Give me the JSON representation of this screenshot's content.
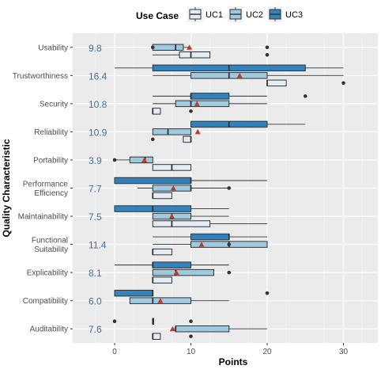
{
  "chart_data": {
    "type": "boxplot",
    "xlabel": "Points",
    "ylabel": "Quality Characteristic",
    "xlim": [
      -5,
      35
    ],
    "xticks": [
      0,
      10,
      20,
      30
    ],
    "grid": true,
    "legend": {
      "title": "Use Case",
      "position": "top",
      "entries": [
        "UC1",
        "UC2",
        "UC3"
      ]
    },
    "series_colors": {
      "UC1": "#e4edf7",
      "UC2": "#9ecae1",
      "UC3": "#3182bd"
    },
    "mean_marker_color": "#c0392b",
    "categories": [
      {
        "name": [
          "Usability"
        ],
        "mean": "9.8",
        "boxes": {
          "UC2": {
            "wmin": 5,
            "q1": 5,
            "median": 8,
            "q3": 9,
            "wmax": 10,
            "outliers": [
              5,
              20
            ]
          },
          "UC1": {
            "wmin": 5,
            "q1": 8.5,
            "median": 10,
            "q3": 12.5,
            "wmax": 12.5,
            "outliers": [
              20
            ]
          }
        },
        "mean_point": 9.8
      },
      {
        "name": [
          "Trustworthiness"
        ],
        "mean": "16.4",
        "boxes": {
          "UC3": {
            "wmin": 0,
            "q1": 5,
            "median": 15,
            "q3": 25,
            "wmax": 30,
            "outliers": []
          },
          "UC2": {
            "wmin": 5,
            "q1": 10,
            "median": 15,
            "q3": 20,
            "wmax": 30,
            "outliers": []
          },
          "UC1": {
            "wmin": 20,
            "q1": 20,
            "median": 20,
            "q3": 22.5,
            "wmax": 22.5,
            "outliers": [
              30
            ]
          }
        },
        "mean_point": 16.4
      },
      {
        "name": [
          "Security"
        ],
        "mean": "10.8",
        "boxes": {
          "UC3": {
            "wmin": 5,
            "q1": 10,
            "median": 10,
            "q3": 15,
            "wmax": 20,
            "outliers": [
              25
            ]
          },
          "UC2": {
            "wmin": 5,
            "q1": 8,
            "median": 10,
            "q3": 15,
            "wmax": 20,
            "outliers": []
          },
          "UC1": {
            "wmin": 5,
            "q1": 5,
            "median": 5,
            "q3": 6,
            "wmax": 6,
            "outliers": [
              10
            ]
          }
        },
        "mean_point": 10.8
      },
      {
        "name": [
          "Reliability"
        ],
        "mean": "10.9",
        "boxes": {
          "UC3": {
            "wmin": 10,
            "q1": 10,
            "median": 15,
            "q3": 20,
            "wmax": 25,
            "outliers": []
          },
          "UC2": {
            "wmin": 5,
            "q1": 5,
            "median": 7,
            "q3": 10,
            "wmax": 10,
            "outliers": []
          },
          "UC1": {
            "wmin": 9,
            "q1": 9,
            "median": 10,
            "q3": 10,
            "wmax": 10,
            "outliers": [
              5
            ]
          }
        },
        "mean_point": 10.9
      },
      {
        "name": [
          "Portability"
        ],
        "mean": "3.9",
        "boxes": {
          "UC2": {
            "wmin": 0,
            "q1": 2,
            "median": 4,
            "q3": 5,
            "wmax": 5,
            "outliers": [
              0
            ]
          },
          "UC1": {
            "wmin": 5,
            "q1": 5,
            "median": 7.5,
            "q3": 10,
            "wmax": 10,
            "outliers": []
          }
        },
        "mean_point": 3.9
      },
      {
        "name": [
          "Performance",
          "Efficiency"
        ],
        "mean": "7.7",
        "boxes": {
          "UC3": {
            "wmin": 0,
            "q1": 0,
            "median": 10,
            "q3": 10,
            "wmax": 20,
            "outliers": []
          },
          "UC2": {
            "wmin": 3,
            "q1": 5,
            "median": 10,
            "q3": 10,
            "wmax": 15,
            "outliers": [
              15
            ]
          },
          "UC1": {
            "wmin": 5,
            "q1": 5,
            "median": 5,
            "q3": 7.5,
            "wmax": 7.5,
            "outliers": []
          }
        },
        "mean_point": 7.7
      },
      {
        "name": [
          "Maintainability"
        ],
        "mean": "7.5",
        "boxes": {
          "UC3": {
            "wmin": 0,
            "q1": 0,
            "median": 5,
            "q3": 10,
            "wmax": 15,
            "outliers": []
          },
          "UC2": {
            "wmin": 5,
            "q1": 5,
            "median": 7.5,
            "q3": 10,
            "wmax": 15,
            "outliers": []
          },
          "UC1": {
            "wmin": 5,
            "q1": 5,
            "median": 7.5,
            "q3": 12.5,
            "wmax": 20,
            "outliers": []
          }
        },
        "mean_point": 7.5
      },
      {
        "name": [
          "Functional",
          "Suitability"
        ],
        "mean": "11.4",
        "boxes": {
          "UC3": {
            "wmin": 5,
            "q1": 10,
            "median": 15,
            "q3": 15,
            "wmax": 20,
            "outliers": []
          },
          "UC2": {
            "wmin": 5,
            "q1": 10,
            "median": 15,
            "q3": 20,
            "wmax": 20,
            "outliers": [
              15
            ]
          },
          "UC1": {
            "wmin": 5,
            "q1": 5,
            "median": 5,
            "q3": 7.5,
            "wmax": 7.5,
            "outliers": []
          }
        },
        "mean_point": 11.4
      },
      {
        "name": [
          "Explicability"
        ],
        "mean": "8.1",
        "boxes": {
          "UC3": {
            "wmin": 0,
            "q1": 5,
            "median": 5,
            "q3": 10,
            "wmax": 15,
            "outliers": []
          },
          "UC2": {
            "wmin": 5,
            "q1": 5,
            "median": 8,
            "q3": 13,
            "wmax": 13,
            "outliers": [
              15
            ]
          },
          "UC1": {
            "wmin": 5,
            "q1": 5,
            "median": 5,
            "q3": 7.5,
            "wmax": 7.5,
            "outliers": []
          }
        },
        "mean_point": 8.1
      },
      {
        "name": [
          "Compatibility"
        ],
        "mean": "6.0",
        "boxes": {
          "UC3": {
            "wmin": 0,
            "q1": 0,
            "median": 5,
            "q3": 5,
            "wmax": 5,
            "outliers": [
              20
            ]
          },
          "UC2": {
            "wmin": 2,
            "q1": 2,
            "median": 5,
            "q3": 10,
            "wmax": 15,
            "outliers": []
          }
        },
        "mean_point": 6.0
      },
      {
        "name": [
          "Auditability"
        ],
        "mean": "7.6",
        "boxes": {
          "UC3": {
            "wmin": 5,
            "q1": 5,
            "median": 5,
            "q3": 5,
            "wmax": 5,
            "outliers": [
              0,
              10
            ]
          },
          "UC2": {
            "wmin": 7.5,
            "q1": 8,
            "median": 8,
            "q3": 15,
            "wmax": 20,
            "outliers": []
          },
          "UC1": {
            "wmin": 5,
            "q1": 5,
            "median": 5,
            "q3": 6,
            "wmax": 6,
            "outliers": [
              10
            ]
          }
        },
        "mean_point": 7.6
      }
    ]
  }
}
